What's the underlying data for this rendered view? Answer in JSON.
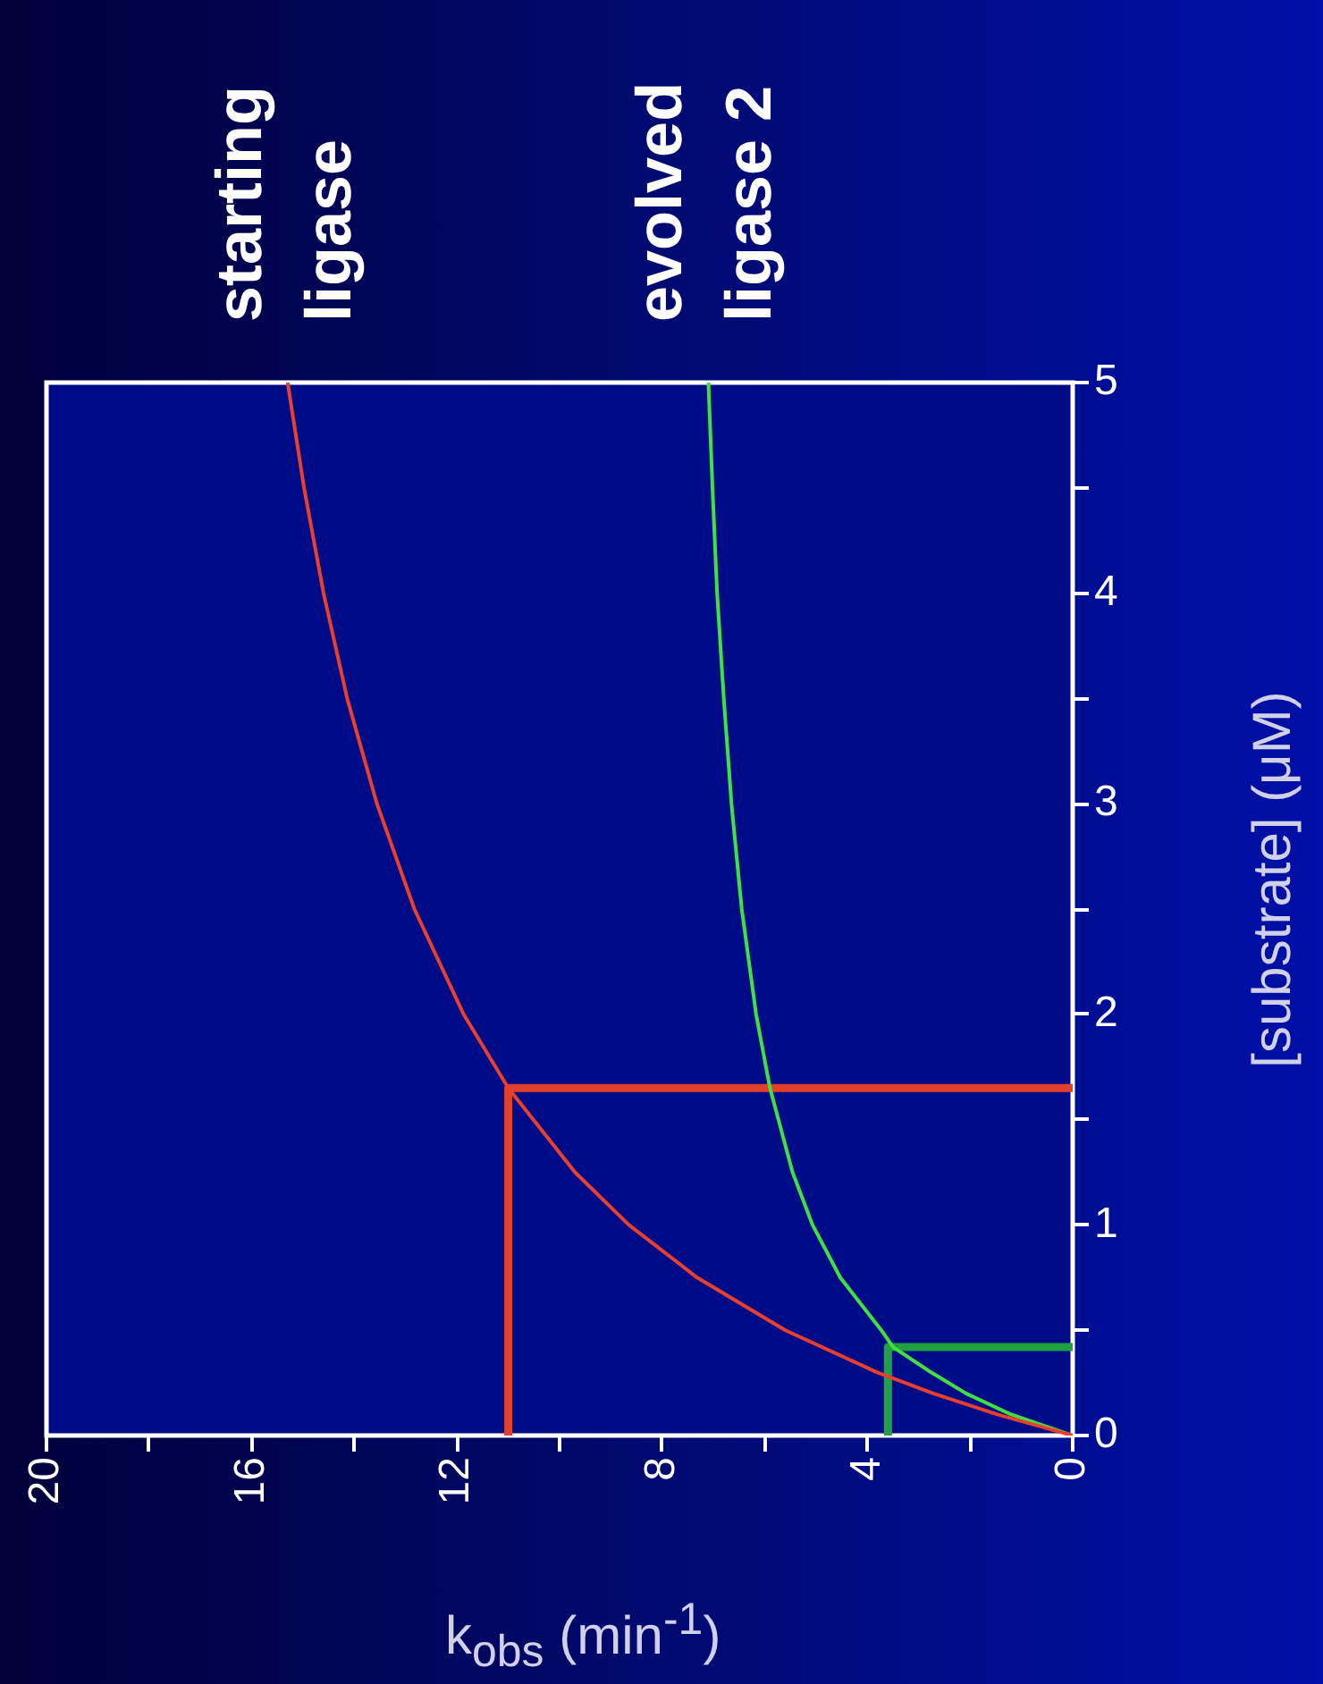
{
  "chart_data": {
    "type": "line",
    "xlabel": "k$_{obs}$ (min$^{-1}$)",
    "ylabel": "[substrate] (μM)",
    "xlim": [
      20,
      0
    ],
    "xticks": [
      20,
      {
        "value": 18,
        "label": null
      },
      16,
      {
        "value": 14,
        "label": null
      },
      12,
      {
        "value": 10,
        "label": null
      },
      8,
      {
        "value": 6,
        "label": null
      },
      4,
      {
        "value": 2,
        "label": null
      },
      0
    ],
    "ylim": [
      0,
      5
    ],
    "yticks": [
      0,
      {
        "value": 0.5,
        "label": null
      },
      1,
      {
        "value": 1.5,
        "label": null
      },
      2,
      {
        "value": 2.5,
        "label": null
      },
      3,
      {
        "value": 3.5,
        "label": null
      },
      4,
      {
        "value": 4.5,
        "label": null
      },
      5
    ],
    "legend": false,
    "marker": "none",
    "series": [
      {
        "name": "starting ligase",
        "color": "#e8402c",
        "x": [
          0,
          1.47,
          2.72,
          3.81,
          5.6,
          7.32,
          8.65,
          9.7,
          11,
          11.87,
          12.83,
          13.56,
          14.14,
          14.6,
          14.98,
          15.3
        ],
        "values": [
          0,
          0.1,
          0.2,
          0.3,
          0.5,
          0.75,
          1,
          1.25,
          1.65,
          2,
          2.5,
          3,
          3.5,
          4,
          4.5,
          5
        ]
      },
      {
        "name": "evolved ligase 2",
        "color": "#40e040",
        "x": [
          0,
          1.2,
          2.08,
          2.76,
          3.5,
          3.73,
          4.53,
          5.07,
          5.46,
          5.9,
          6.17,
          6.45,
          6.65,
          6.8,
          6.93,
          7.02,
          7.1
        ],
        "values": [
          0,
          0.1,
          0.2,
          0.3,
          0.42,
          0.5,
          0.75,
          1,
          1.25,
          1.65,
          2,
          2.5,
          3,
          3.5,
          4,
          4.5,
          5
        ]
      },
      {
        "color": "#e0402c",
        "x": [
          11,
          11,
          0
        ],
        "values": [
          0,
          1.65,
          1.65
        ]
      },
      {
        "color": "#20a040",
        "x": [
          3.6,
          3.6,
          0
        ],
        "values": [
          0,
          0.42,
          0.42
        ]
      }
    ]
  }
}
